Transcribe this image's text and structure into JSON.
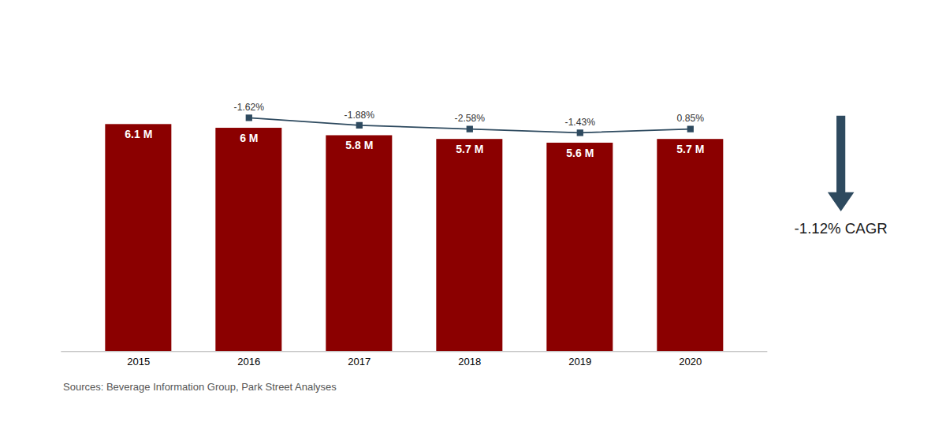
{
  "chart_data": {
    "type": "bar",
    "categories": [
      "2015",
      "2016",
      "2017",
      "2018",
      "2019",
      "2020"
    ],
    "values": [
      6.1,
      6.0,
      5.8,
      5.7,
      5.6,
      5.7
    ],
    "value_labels": [
      "6.1 M",
      "6 M",
      "5.8 M",
      "5.7 M",
      "5.6 M",
      "5.7 M"
    ],
    "data_labels": true,
    "color": "#8B0000",
    "ylim": [
      0,
      8.5
    ],
    "tick_labels": "x",
    "grid": false,
    "growth_line": {
      "categories": [
        "2016",
        "2017",
        "2018",
        "2019",
        "2020"
      ],
      "labels": [
        "-1.62%",
        "-1.88%",
        "-2.58%",
        "-1.43%",
        "0.85%"
      ],
      "color": "#2E4A5F",
      "marker": "square"
    },
    "annotations": [
      {
        "text": "-1.12% CAGR",
        "arrow": "down",
        "color": "#2E4A5F"
      }
    ],
    "caption": "Sources: Beverage Information Group, Park Street Analyses"
  }
}
